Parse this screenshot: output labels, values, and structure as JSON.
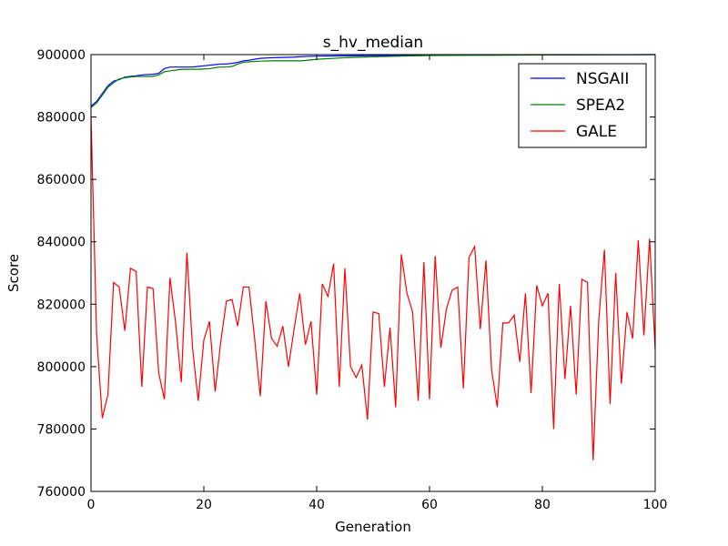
{
  "chart_data": {
    "type": "line",
    "title": "s_hv_median",
    "xlabel": "Generation",
    "ylabel": "Score",
    "xlim": [
      0,
      100
    ],
    "ylim": [
      760000,
      900000
    ],
    "xticks": [
      0,
      20,
      40,
      60,
      80,
      100
    ],
    "yticks": [
      760000,
      780000,
      800000,
      820000,
      840000,
      860000,
      880000,
      900000
    ],
    "grid": false,
    "legend_position": "top-right",
    "series": [
      {
        "name": "NSGAII",
        "color": "#0000ff",
        "x": [
          0,
          1,
          2,
          3,
          4,
          5,
          6,
          7,
          8,
          9,
          10,
          11,
          12,
          13,
          14,
          15,
          16,
          17,
          18,
          19,
          20,
          21,
          22,
          23,
          24,
          25,
          26,
          27,
          28,
          29,
          30,
          32,
          34,
          36,
          37,
          38,
          40,
          45,
          50,
          55,
          60,
          70,
          80,
          90,
          100
        ],
        "y": [
          883500,
          885000,
          887500,
          890000,
          891500,
          892000,
          892800,
          893000,
          893200,
          893500,
          893600,
          893700,
          894000,
          895500,
          896000,
          896000,
          896000,
          896000,
          896000,
          896200,
          896400,
          896600,
          896800,
          897000,
          897000,
          897200,
          897500,
          898000,
          898200,
          898500,
          898800,
          899000,
          899100,
          899200,
          899300,
          899400,
          899500,
          899600,
          899700,
          899750,
          899800,
          899850,
          899900,
          899950,
          900000
        ]
      },
      {
        "name": "SPEA2",
        "color": "#008000",
        "x": [
          0,
          1,
          2,
          3,
          4,
          5,
          6,
          7,
          8,
          9,
          10,
          11,
          12,
          13,
          14,
          15,
          16,
          17,
          18,
          19,
          20,
          21,
          22,
          23,
          24,
          25,
          26,
          27,
          28,
          29,
          30,
          32,
          34,
          36,
          37,
          38,
          40,
          45,
          50,
          55,
          60,
          70,
          80,
          90,
          100
        ],
        "y": [
          883000,
          884500,
          887000,
          889500,
          891000,
          892200,
          892600,
          892800,
          893000,
          893000,
          893000,
          893000,
          893500,
          894500,
          894800,
          895000,
          895300,
          895300,
          895300,
          895300,
          895400,
          895500,
          895800,
          896000,
          896000,
          896200,
          897000,
          897500,
          897700,
          897800,
          897900,
          898000,
          898000,
          898000,
          898000,
          898100,
          898500,
          899000,
          899300,
          899500,
          899700,
          899800,
          899900,
          899950,
          900000
        ]
      },
      {
        "name": "GALE",
        "color": "#ff0000",
        "x": [
          0,
          1,
          2,
          3,
          4,
          5,
          6,
          7,
          8,
          9,
          10,
          11,
          12,
          13,
          14,
          15,
          16,
          17,
          18,
          19,
          20,
          21,
          22,
          23,
          24,
          25,
          26,
          27,
          28,
          29,
          30,
          31,
          32,
          33,
          34,
          35,
          36,
          37,
          38,
          39,
          40,
          41,
          42,
          43,
          44,
          45,
          46,
          47,
          48,
          49,
          50,
          51,
          52,
          53,
          54,
          55,
          56,
          57,
          58,
          59,
          60,
          61,
          62,
          63,
          64,
          65,
          66,
          67,
          68,
          69,
          70,
          71,
          72,
          73,
          74,
          75,
          76,
          77,
          78,
          79,
          80,
          81,
          82,
          83,
          84,
          85,
          86,
          87,
          88,
          89,
          90,
          91,
          92,
          93,
          94,
          95,
          96,
          97,
          98,
          99,
          100
        ],
        "y": [
          880000,
          810000,
          783500,
          791000,
          827000,
          825500,
          811500,
          831500,
          830500,
          793500,
          825500,
          825000,
          798000,
          789500,
          828500,
          814000,
          795000,
          836500,
          806000,
          789000,
          808500,
          814500,
          792000,
          808000,
          821000,
          821500,
          813000,
          825500,
          825500,
          809000,
          790500,
          821000,
          809000,
          806500,
          813000,
          800000,
          812000,
          823500,
          807000,
          814500,
          791000,
          826500,
          822500,
          833000,
          793500,
          831500,
          800000,
          796500,
          800500,
          783000,
          817500,
          817000,
          793500,
          812500,
          787000,
          836000,
          823500,
          817500,
          789000,
          833500,
          789500,
          835500,
          806000,
          818500,
          824500,
          825500,
          793000,
          835000,
          838500,
          812000,
          834000,
          799000,
          787000,
          814000,
          814000,
          816500,
          801500,
          823500,
          791500,
          826000,
          819500,
          823500,
          780000,
          826500,
          796000,
          819500,
          791000,
          828000,
          827000,
          770000,
          815000,
          837500,
          788000,
          830000,
          794500,
          817500,
          809000,
          840500,
          810000,
          841000,
          805500
        ]
      }
    ]
  }
}
